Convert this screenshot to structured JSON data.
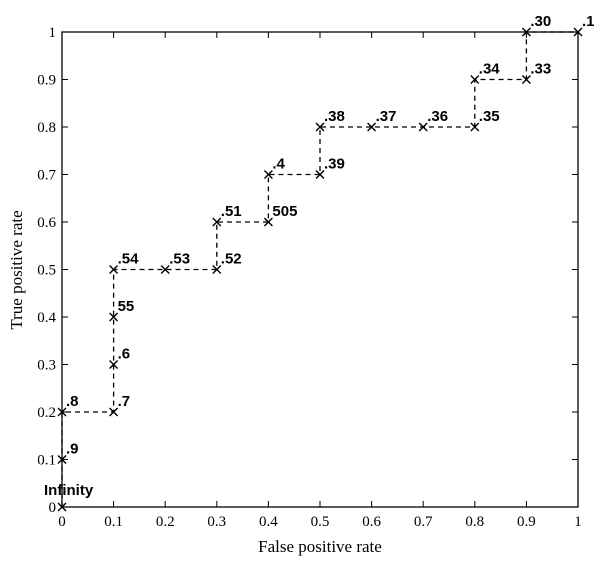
{
  "chart_data": {
    "type": "line",
    "title": "",
    "xlabel": "False positive rate",
    "ylabel": "True positive rate",
    "xlim": [
      0,
      1
    ],
    "ylim": [
      0,
      1
    ],
    "x_tick_labels": [
      "0",
      "0.1",
      "0.2",
      "0.3",
      "0.4",
      "0.5",
      "0.6",
      "0.7",
      "0.8",
      "0.9",
      "1"
    ],
    "y_tick_labels": [
      "0",
      "0.1",
      "0.2",
      "0.3",
      "0.4",
      "0.5",
      "0.6",
      "0.7",
      "0.8",
      "0.9",
      "1"
    ],
    "grid": false,
    "line_style": "dashed",
    "marker": "x",
    "series": [
      {
        "x": [
          0,
          0,
          0,
          0.1,
          0.1,
          0.1,
          0.1,
          0.2,
          0.3,
          0.3,
          0.4,
          0.4,
          0.5,
          0.5,
          0.6,
          0.7,
          0.8,
          0.8,
          0.9,
          0.9,
          1
        ],
        "y": [
          0,
          0.1,
          0.2,
          0.2,
          0.3,
          0.4,
          0.5,
          0.5,
          0.5,
          0.6,
          0.6,
          0.7,
          0.7,
          0.8,
          0.8,
          0.8,
          0.8,
          0.9,
          0.9,
          1,
          1
        ],
        "labels": [
          "Infinity",
          ".9",
          ".8",
          ".7",
          ".6",
          "55",
          ".54",
          ".53",
          ".52",
          ".51",
          "505",
          ".4",
          ".39",
          ".38",
          ".37",
          ".36",
          ".35",
          ".34",
          ".33",
          ".30",
          ".1"
        ]
      }
    ]
  }
}
